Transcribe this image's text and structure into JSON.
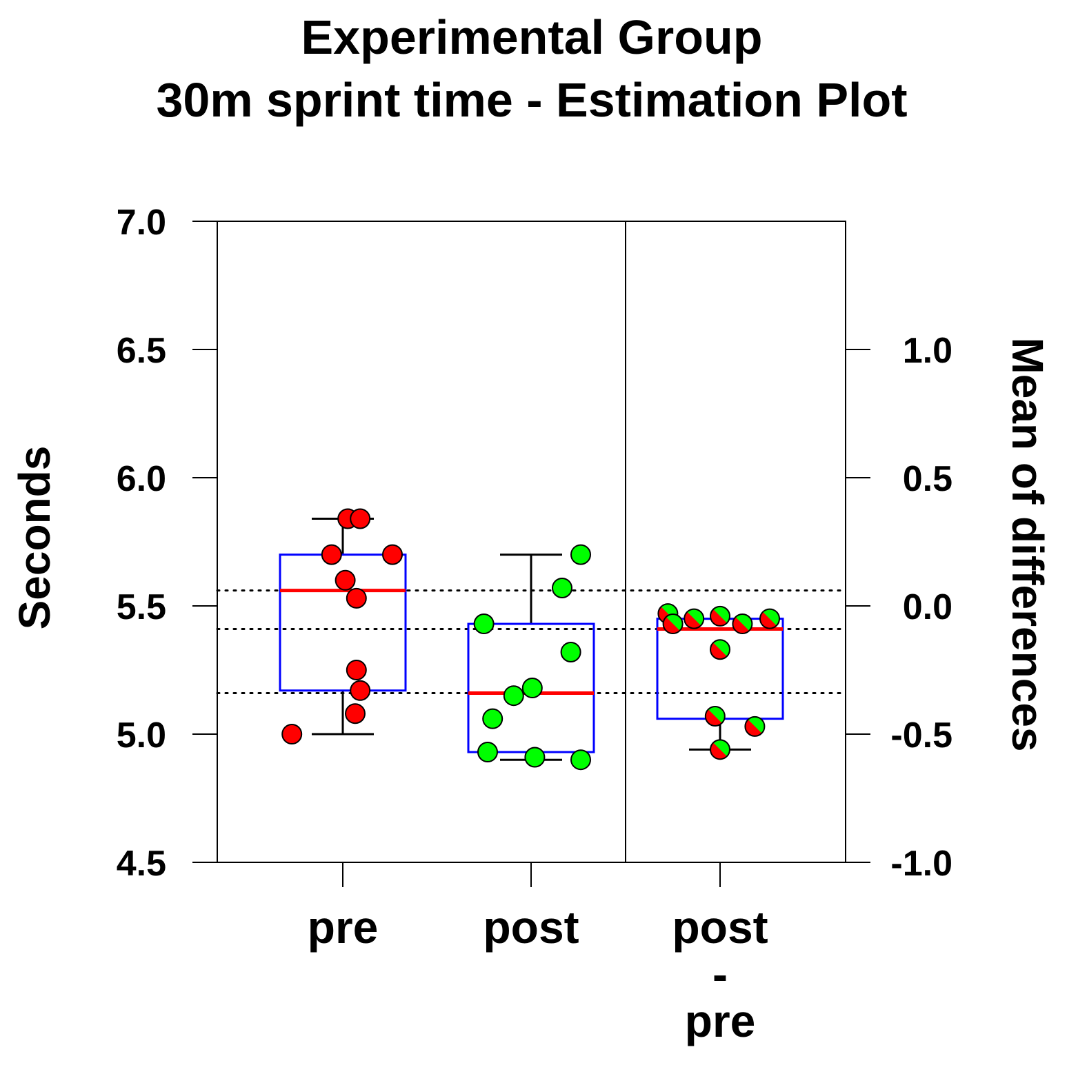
{
  "chart_data": {
    "type": "box",
    "title": [
      "Experimental Group",
      "30m sprint time - Estimation Plot"
    ],
    "ylabel": "Seconds",
    "y2label": "Mean of differences",
    "ylim": [
      4.5,
      7.0
    ],
    "y2lim": [
      -1.0,
      1.5
    ],
    "yticks": [
      "4.5",
      "5.0",
      "5.5",
      "6.0",
      "6.5",
      "7.0"
    ],
    "y2ticks": [
      "-1.0",
      "-0.5",
      "0.0",
      "0.5",
      "1.0"
    ],
    "categories": [
      {
        "label": [
          "pre"
        ]
      },
      {
        "label": [
          "post"
        ]
      },
      {
        "label": [
          "post",
          "-",
          "pre"
        ]
      }
    ],
    "colors": {
      "pre": "#ff0000",
      "post": "#00ff00",
      "box": "#0000ff",
      "median": "#ff0000"
    },
    "reference_lines_seconds": [
      5.56,
      5.41,
      5.16
    ],
    "series": [
      {
        "name": "pre",
        "axis": "left",
        "box": {
          "q1": 5.17,
          "median": 5.56,
          "q3": 5.7,
          "whisker_low": 5.0,
          "whisker_high": 5.84
        },
        "points": [
          {
            "jitter": -0.41,
            "value": 5.0
          },
          {
            "jitter": 0.04,
            "value": 5.84
          },
          {
            "jitter": 0.14,
            "value": 5.84
          },
          {
            "jitter": -0.09,
            "value": 5.7
          },
          {
            "jitter": 0.4,
            "value": 5.7
          },
          {
            "jitter": 0.02,
            "value": 5.6
          },
          {
            "jitter": 0.11,
            "value": 5.53
          },
          {
            "jitter": 0.11,
            "value": 5.25
          },
          {
            "jitter": 0.14,
            "value": 5.17
          },
          {
            "jitter": 0.1,
            "value": 5.08
          }
        ]
      },
      {
        "name": "post",
        "axis": "left",
        "box": {
          "q1": 4.93,
          "median": 5.16,
          "q3": 5.43,
          "whisker_low": 4.9,
          "whisker_high": 5.7
        },
        "points": [
          {
            "jitter": 0.4,
            "value": 5.7
          },
          {
            "jitter": 0.25,
            "value": 5.57
          },
          {
            "jitter": -0.38,
            "value": 5.43
          },
          {
            "jitter": 0.32,
            "value": 5.32
          },
          {
            "jitter": 0.01,
            "value": 5.18
          },
          {
            "jitter": -0.14,
            "value": 5.15
          },
          {
            "jitter": -0.31,
            "value": 5.06
          },
          {
            "jitter": -0.35,
            "value": 4.93
          },
          {
            "jitter": 0.03,
            "value": 4.91
          },
          {
            "jitter": 0.4,
            "value": 4.9
          }
        ]
      },
      {
        "name": "post - pre",
        "axis": "right",
        "box": {
          "q1": -0.44,
          "median": -0.09,
          "q3": -0.05,
          "whisker_low": -0.56,
          "whisker_high": -0.05
        },
        "points": [
          {
            "jitter": -0.42,
            "value": -0.03
          },
          {
            "jitter": -0.38,
            "value": -0.07
          },
          {
            "jitter": -0.21,
            "value": -0.05
          },
          {
            "jitter": 0.0,
            "value": -0.04
          },
          {
            "jitter": 0.18,
            "value": -0.07
          },
          {
            "jitter": 0.4,
            "value": -0.05
          },
          {
            "jitter": 0.0,
            "value": -0.17
          },
          {
            "jitter": -0.04,
            "value": -0.43
          },
          {
            "jitter": 0.28,
            "value": -0.47
          },
          {
            "jitter": 0.0,
            "value": -0.56
          }
        ]
      }
    ]
  }
}
